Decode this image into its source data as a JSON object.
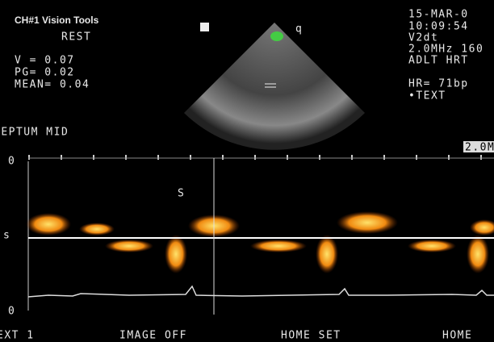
{
  "header": {
    "brand": "CH#1 Vision Tools",
    "mode": "REST",
    "measurements": [
      "V = 0.07",
      "PG= 0.02",
      "MEAN= 0.04"
    ],
    "location": "SEPTUM MID"
  },
  "info": {
    "date": "15-MAR-0",
    "time": "10:09:54",
    "probe": "V2dt",
    "freq": "2.0MHz 160",
    "preset": "ADLT HRT",
    "hr": "HR= 71bp",
    "text": "•TEXT"
  },
  "doppler": {
    "freq_box": "2.0M",
    "scale_top": "0",
    "baseline": "s",
    "scale_bottom": "0",
    "marker": "S"
  },
  "softkeys": [
    "EXT 1",
    "IMAGE OFF",
    "HOME SET",
    "HOME"
  ]
}
